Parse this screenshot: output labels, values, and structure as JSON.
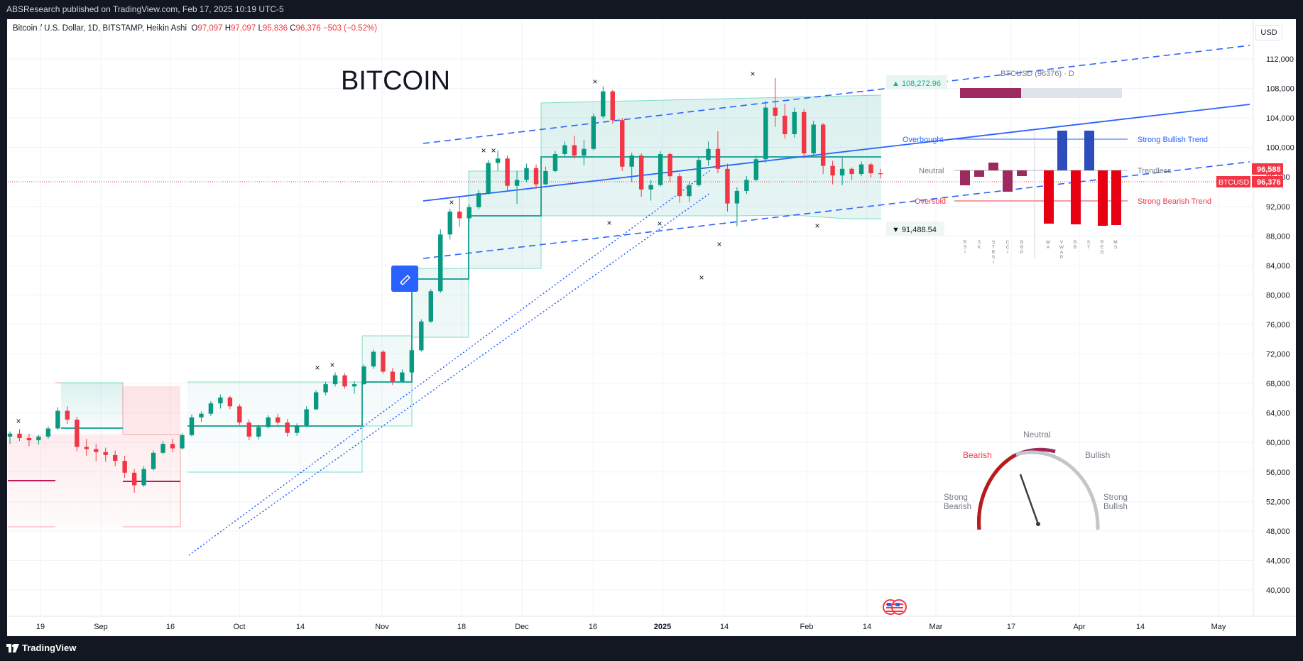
{
  "topbar": {
    "text": "ABSResearch published on TradingView.com, Feb 17, 2025 10:19 UTC-5"
  },
  "symbol": {
    "name": "Bitcoin / U.S. Dollar, 1D, BITSTAMP, Heikin Ashi",
    "o_label": "O",
    "o_value": "97,097",
    "h_label": "H",
    "h_value": "97,097",
    "l_label": "L",
    "l_value": "95,836",
    "c_label": "C",
    "c_value": "96,376",
    "change": "−503 (−0.52%)"
  },
  "currency": "USD",
  "chart_title": "BITCOIN",
  "price_axis": [
    "112,000",
    "108,000",
    "104,000",
    "100,000",
    "96,000",
    "92,000",
    "88,000",
    "84,000",
    "80,000",
    "76,000",
    "72,000",
    "68,000",
    "64,000",
    "60,000",
    "56,000",
    "52,000",
    "48,000",
    "44,000",
    "40,000"
  ],
  "time_axis": [
    "19",
    "Sep",
    "16",
    "Oct",
    "14",
    "Nov",
    "18",
    "Dec",
    "16",
    "2025",
    "14",
    "Feb",
    "14",
    "Mar",
    "17",
    "Apr",
    "14",
    "May"
  ],
  "price_tags": {
    "upper": "96,588",
    "symbol_tag": "BTCUSD",
    "last": "96,376"
  },
  "callouts": {
    "high_label": "▲ 108,272.96",
    "low_label": "▼ 91,488.54"
  },
  "panel": {
    "title": "BTCUSD (96376) · D",
    "overbought": "Overbought",
    "neutral": "Neutral",
    "oversold": "Oversold",
    "strong_bullish_trend": "Strong Bullish Trend",
    "trendless": "Trendless",
    "strong_bearish_trend": "Strong Bearish Trend",
    "oscillators": [
      "RSI",
      "SK",
      "STRSI",
      "CCI",
      "BBP"
    ],
    "trend_indicators": [
      "MA",
      "VWAP",
      "BB",
      "ST",
      "REG",
      "MS"
    ]
  },
  "gauge": {
    "neutral": "Neutral",
    "bearish": "Bearish",
    "bullish": "Bullish",
    "strong_bearish": "Strong Bearish",
    "strong_bullish": "Strong Bullish"
  },
  "bottombar": {
    "logo": "TradingView"
  },
  "colors": {
    "bull": "#089981",
    "bear": "#f23645",
    "trendline": "#2962ff",
    "panel_bar_purple": "#9c2a5f",
    "band_fill": "#26a69a"
  },
  "chart_data": {
    "type": "candlestick",
    "title": "BITCOIN",
    "ylim": [
      38000,
      116000
    ],
    "last_price": 96376,
    "candles": [
      [
        60800,
        61500,
        59800,
        61200
      ],
      [
        61200,
        61800,
        60200,
        60600
      ],
      [
        60600,
        61200,
        59500,
        60300
      ],
      [
        60300,
        61000,
        59700,
        60800
      ],
      [
        60800,
        62200,
        60500,
        61900
      ],
      [
        61900,
        64800,
        61700,
        64300
      ],
      [
        64300,
        64900,
        62500,
        63100
      ],
      [
        63100,
        63500,
        58800,
        59400
      ],
      [
        59400,
        60500,
        58200,
        59100
      ],
      [
        59100,
        59800,
        57500,
        58700
      ],
      [
        58700,
        59300,
        57400,
        58300
      ],
      [
        58300,
        58900,
        56800,
        57500
      ],
      [
        57500,
        58200,
        55200,
        55900
      ],
      [
        55900,
        56400,
        53200,
        54200
      ],
      [
        54200,
        56800,
        54000,
        56400
      ],
      [
        56400,
        58900,
        56200,
        58600
      ],
      [
        58600,
        60200,
        58400,
        59800
      ],
      [
        59800,
        60500,
        58700,
        59200
      ],
      [
        59200,
        61300,
        59000,
        61000
      ],
      [
        61000,
        63800,
        60800,
        63400
      ],
      [
        63400,
        64200,
        62800,
        63900
      ],
      [
        63900,
        65600,
        63600,
        65300
      ],
      [
        65300,
        66500,
        64600,
        66100
      ],
      [
        66100,
        66300,
        64500,
        64900
      ],
      [
        64900,
        65200,
        62400,
        62700
      ],
      [
        62700,
        63100,
        60300,
        60800
      ],
      [
        60800,
        62400,
        60400,
        62100
      ],
      [
        62100,
        63700,
        61900,
        63400
      ],
      [
        63400,
        63900,
        62400,
        62700
      ],
      [
        62700,
        63200,
        60800,
        61300
      ],
      [
        61300,
        62600,
        60900,
        62300
      ],
      [
        62300,
        64900,
        62100,
        64500
      ],
      [
        64500,
        67100,
        64400,
        66800
      ],
      [
        66800,
        68200,
        66400,
        67900
      ],
      [
        67900,
        69500,
        67600,
        69100
      ],
      [
        69100,
        69400,
        67300,
        67600
      ],
      [
        67600,
        68300,
        66600,
        67900
      ],
      [
        67900,
        70600,
        67800,
        70300
      ],
      [
        70300,
        72600,
        70000,
        72300
      ],
      [
        72300,
        72500,
        69300,
        69600
      ],
      [
        69600,
        70100,
        67800,
        68300
      ],
      [
        68300,
        69900,
        68100,
        69500
      ],
      [
        69500,
        72800,
        69400,
        72500
      ],
      [
        72500,
        76700,
        72300,
        76400
      ],
      [
        76400,
        80800,
        76200,
        80500
      ],
      [
        80500,
        88900,
        80300,
        88200
      ],
      [
        88200,
        91700,
        87500,
        91300
      ],
      [
        91300,
        93200,
        89200,
        90400
      ],
      [
        90400,
        92300,
        89900,
        91900
      ],
      [
        91900,
        94200,
        91600,
        93800
      ],
      [
        93800,
        98300,
        93600,
        97900
      ],
      [
        97900,
        99600,
        96800,
        98500
      ],
      [
        98500,
        98900,
        94200,
        94800
      ],
      [
        94800,
        96800,
        92300,
        95600
      ],
      [
        95600,
        97800,
        95300,
        97200
      ],
      [
        97200,
        97700,
        94400,
        95000
      ],
      [
        95000,
        97400,
        94900,
        96800
      ],
      [
        96800,
        99500,
        96600,
        99100
      ],
      [
        99100,
        100800,
        98700,
        100300
      ],
      [
        100300,
        101600,
        98500,
        98900
      ],
      [
        98900,
        101000,
        97600,
        99800
      ],
      [
        99800,
        104600,
        99600,
        104200
      ],
      [
        104200,
        108300,
        103900,
        107600
      ],
      [
        107600,
        107800,
        103200,
        103700
      ],
      [
        103700,
        104000,
        96800,
        97400
      ],
      [
        97400,
        99300,
        95300,
        98900
      ],
      [
        98900,
        99200,
        93300,
        94300
      ],
      [
        94300,
        95600,
        92800,
        94900
      ],
      [
        94900,
        99500,
        94700,
        99100
      ],
      [
        99100,
        99300,
        95300,
        96100
      ],
      [
        96100,
        96500,
        92500,
        93400
      ],
      [
        93400,
        95400,
        92600,
        94900
      ],
      [
        94900,
        98700,
        94700,
        98300
      ],
      [
        98300,
        100800,
        97500,
        99800
      ],
      [
        99800,
        102200,
        96500,
        97100
      ],
      [
        97100,
        97800,
        91300,
        92400
      ],
      [
        92400,
        94600,
        89300,
        94100
      ],
      [
        94100,
        96100,
        93700,
        95600
      ],
      [
        95600,
        98900,
        95400,
        98400
      ],
      [
        98400,
        106300,
        97900,
        105400
      ],
      [
        105400,
        109400,
        102800,
        104300
      ],
      [
        104300,
        105900,
        101200,
        101800
      ],
      [
        101800,
        105400,
        101300,
        104800
      ],
      [
        104800,
        105200,
        98500,
        99200
      ],
      [
        99200,
        103600,
        98900,
        103100
      ],
      [
        103100,
        103300,
        96400,
        97500
      ],
      [
        97500,
        98200,
        95000,
        96200
      ],
      [
        96200,
        98600,
        94900,
        97100
      ],
      [
        97100,
        97300,
        95600,
        96400
      ],
      [
        96400,
        98100,
        96100,
        97700
      ],
      [
        97700,
        97900,
        95900,
        96500
      ],
      [
        96500,
        97100,
        95800,
        96376
      ]
    ]
  }
}
